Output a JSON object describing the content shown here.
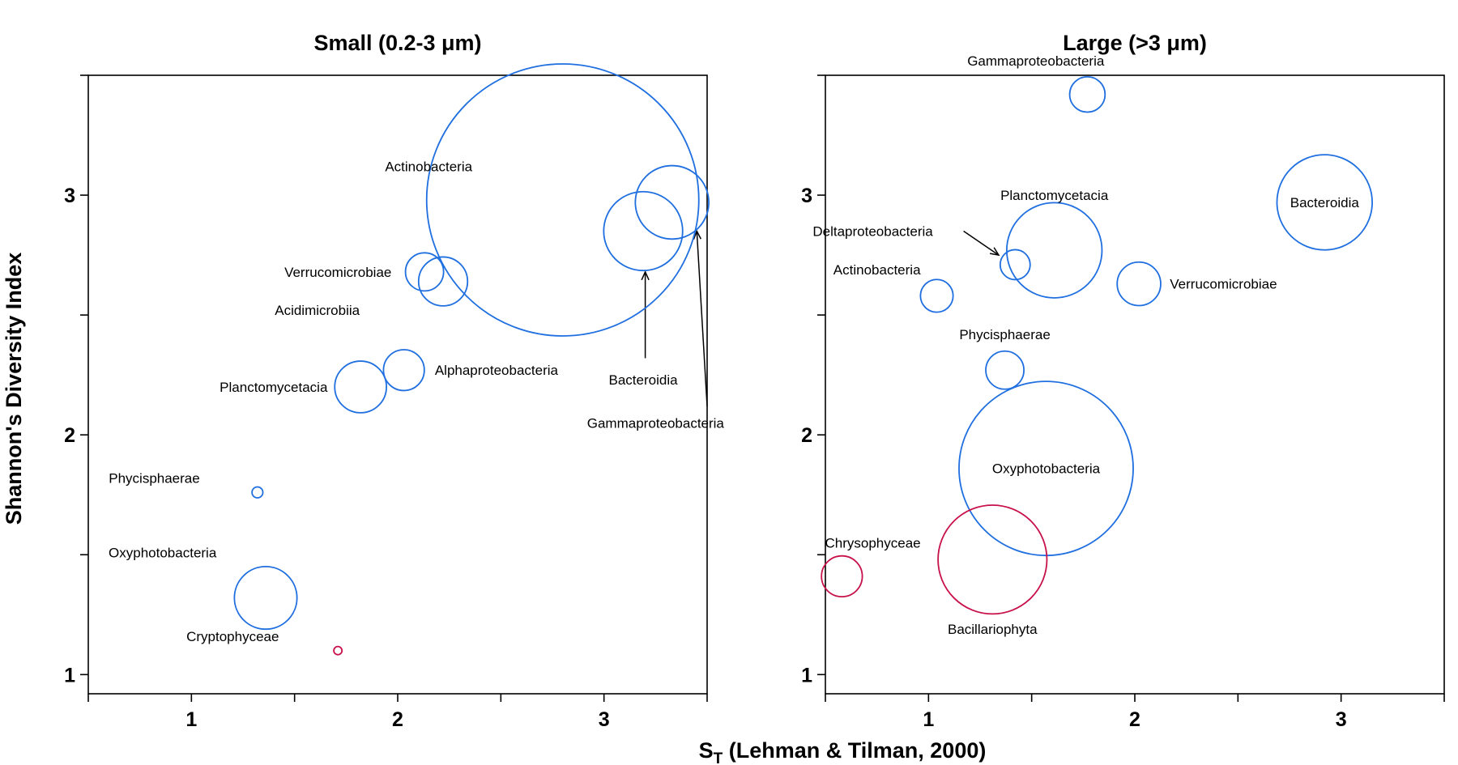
{
  "colors": {
    "bacteria": "#1f6fe0",
    "eukaryote": "#c8104a"
  },
  "chart_data": [
    {
      "type": "scatter",
      "title": "Small (0.2-3 μm)",
      "xlim": [
        0.5,
        3.5
      ],
      "ylim": [
        0.92,
        3.5
      ],
      "xticks": [
        0.5,
        1,
        1.5,
        2,
        2.5,
        3,
        3.5
      ],
      "xtick_labels": [
        "1",
        "2",
        "3"
      ],
      "xtick_label_values": [
        1,
        2,
        3
      ],
      "yticks": [
        1,
        1.5,
        2,
        2.5,
        3,
        3.5
      ],
      "ytick_labels": [
        "1",
        "2",
        "3"
      ],
      "ytick_label_values": [
        1,
        2,
        3
      ],
      "points": [
        {
          "label": "Actinobacteria",
          "x": 2.8,
          "y": 2.98,
          "size": 1.0,
          "group": "bacteria",
          "label_x": 2.15,
          "label_y": 3.12,
          "anchor": "middle"
        },
        {
          "label": "Bacteroidia",
          "x": 3.19,
          "y": 2.85,
          "size": 0.29,
          "group": "bacteria",
          "label_x": 3.19,
          "label_y": 2.23,
          "anchor": "middle",
          "arrow": [
            3.2,
            2.32,
            3.2,
            2.68
          ]
        },
        {
          "label": "Gammaproteobacteria",
          "x": 3.33,
          "y": 2.97,
          "size": 0.27,
          "group": "bacteria",
          "label_x": 3.25,
          "label_y": 2.05,
          "anchor": "middle",
          "arrow": [
            3.5,
            2.12,
            3.45,
            2.85
          ]
        },
        {
          "label": "Verrucomicrobiae",
          "x": 2.13,
          "y": 2.68,
          "size": 0.14,
          "group": "bacteria",
          "label_x": 1.97,
          "label_y": 2.68,
          "anchor": "end"
        },
        {
          "label": "Acidimicrobiia",
          "x": 2.22,
          "y": 2.64,
          "size": 0.18,
          "group": "bacteria",
          "label_x": 1.61,
          "label_y": 2.52,
          "anchor": "middle"
        },
        {
          "label": "Alphaproteobacteria",
          "x": 2.03,
          "y": 2.27,
          "size": 0.15,
          "group": "bacteria",
          "label_x": 2.18,
          "label_y": 2.27,
          "anchor": "start"
        },
        {
          "label": "Planctomycetacia",
          "x": 1.82,
          "y": 2.2,
          "size": 0.19,
          "group": "bacteria",
          "label_x": 1.66,
          "label_y": 2.2,
          "anchor": "end"
        },
        {
          "label": "Phycisphaerae",
          "x": 1.32,
          "y": 1.76,
          "size": 0.04,
          "group": "bacteria",
          "label_x": 0.82,
          "label_y": 1.82,
          "anchor": "middle"
        },
        {
          "label": "Oxyphotobacteria",
          "x": 1.36,
          "y": 1.32,
          "size": 0.23,
          "group": "bacteria",
          "label_x": 0.86,
          "label_y": 1.51,
          "anchor": "middle"
        },
        {
          "label": "Cryptophyceae",
          "x": 1.71,
          "y": 1.1,
          "size": 0.03,
          "group": "eukaryote",
          "label_x": 1.2,
          "label_y": 1.16,
          "anchor": "middle"
        }
      ]
    },
    {
      "type": "scatter",
      "title": "Large (>3 μm)",
      "xlim": [
        0.5,
        3.5
      ],
      "ylim": [
        0.92,
        3.5
      ],
      "xticks": [
        0.5,
        1,
        1.5,
        2,
        2.5,
        3,
        3.5
      ],
      "xtick_labels": [
        "1",
        "2",
        "3"
      ],
      "xtick_label_values": [
        1,
        2,
        3
      ],
      "yticks": [
        1,
        1.5,
        2,
        2.5,
        3,
        3.5
      ],
      "ytick_labels": [
        "1",
        "2",
        "3"
      ],
      "ytick_label_values": [
        1,
        2,
        3
      ],
      "points": [
        {
          "label": "Gammaproteobacteria",
          "x": 1.77,
          "y": 3.42,
          "size": 0.13,
          "group": "bacteria",
          "label_x": 1.52,
          "label_y": 3.56,
          "anchor": "middle"
        },
        {
          "label": "Bacteroidia",
          "x": 2.92,
          "y": 2.97,
          "size": 0.35,
          "group": "bacteria",
          "label_x": 2.92,
          "label_y": 2.97,
          "anchor": "middle"
        },
        {
          "label": "Planctomycetacia",
          "x": 1.61,
          "y": 2.77,
          "size": 0.35,
          "group": "bacteria",
          "label_x": 1.61,
          "label_y": 3.0,
          "anchor": "middle"
        },
        {
          "label": "Deltaproteobacteria",
          "x": 1.42,
          "y": 2.71,
          "size": 0.11,
          "group": "bacteria",
          "label_x": 0.73,
          "label_y": 2.85,
          "anchor": "middle",
          "arrow": [
            1.17,
            2.85,
            1.34,
            2.75
          ]
        },
        {
          "label": "Actinobacteria",
          "x": 1.04,
          "y": 2.58,
          "size": 0.12,
          "group": "bacteria",
          "label_x": 0.75,
          "label_y": 2.69,
          "anchor": "middle"
        },
        {
          "label": "Verrucomicrobiae",
          "x": 2.02,
          "y": 2.63,
          "size": 0.16,
          "group": "bacteria",
          "label_x": 2.17,
          "label_y": 2.63,
          "anchor": "start"
        },
        {
          "label": "Phycisphaerae",
          "x": 1.37,
          "y": 2.27,
          "size": 0.14,
          "group": "bacteria",
          "label_x": 1.37,
          "label_y": 2.42,
          "anchor": "middle"
        },
        {
          "label": "Oxyphotobacteria",
          "x": 1.57,
          "y": 1.86,
          "size": 0.64,
          "group": "bacteria",
          "label_x": 1.57,
          "label_y": 1.86,
          "anchor": "middle"
        },
        {
          "label": "Chrysophyceae",
          "x": 0.58,
          "y": 1.41,
          "size": 0.15,
          "group": "eukaryote",
          "label_x": 0.73,
          "label_y": 1.55,
          "anchor": "middle"
        },
        {
          "label": "Bacillariophyta",
          "x": 1.31,
          "y": 1.48,
          "size": 0.4,
          "group": "eukaryote",
          "label_x": 1.31,
          "label_y": 1.19,
          "anchor": "middle"
        }
      ]
    }
  ],
  "axes": {
    "ylabel": "Shannon's Diversity Index",
    "xlabel_main": "S",
    "xlabel_sub": "T",
    "xlabel_rest": " (Lehman & Tilman, 2000)"
  }
}
